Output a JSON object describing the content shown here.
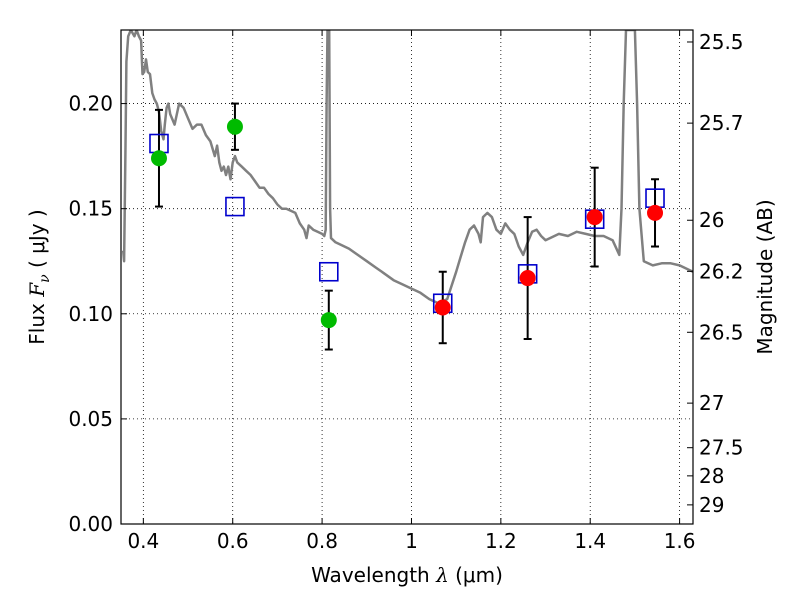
{
  "chart_data": {
    "type": "scatter",
    "xlabel": {
      "prefix": "Wavelength  ",
      "symbol": "λ",
      "units": " (μm)"
    },
    "ylabel": {
      "prefix": "Flux  ",
      "symbol": "F",
      "subscript": "ν",
      "units": "  ( μJy )"
    },
    "y2label": "Magnitude (AB)",
    "xlim": [
      0.35,
      1.63
    ],
    "ylim": [
      0.0,
      0.235
    ],
    "xticks": [
      0.4,
      0.6,
      0.8,
      1.0,
      1.2,
      1.4,
      1.6
    ],
    "xticklabels": [
      "0.4",
      "0.6",
      "0.8",
      "1",
      "1.2",
      "1.4",
      "1.6"
    ],
    "yticks": [
      0.0,
      0.05,
      0.1,
      0.15,
      0.2
    ],
    "yticklabels": [
      "0.00",
      "0.05",
      "0.10",
      "0.15",
      "0.20"
    ],
    "y2ticks": [
      {
        "label": "25.5",
        "flux": 0.2293
      },
      {
        "label": "25.7",
        "flux": 0.1907
      },
      {
        "label": "26",
        "flux": 0.1445
      },
      {
        "label": "26.2",
        "flux": 0.1202
      },
      {
        "label": "26.5",
        "flux": 0.0912
      },
      {
        "label": "27",
        "flux": 0.0575
      },
      {
        "label": "27.5",
        "flux": 0.0363
      },
      {
        "label": "28",
        "flux": 0.0229
      },
      {
        "label": "29",
        "flux": 0.0091
      }
    ],
    "grid": true,
    "series": [
      {
        "style": "line",
        "color": "#808080",
        "points": [
          [
            0.355,
            0.13
          ],
          [
            0.357,
            0.125
          ],
          [
            0.36,
            0.18
          ],
          [
            0.362,
            0.22
          ],
          [
            0.366,
            0.232
          ],
          [
            0.372,
            0.235
          ],
          [
            0.38,
            0.232
          ],
          [
            0.385,
            0.235
          ],
          [
            0.39,
            0.232
          ],
          [
            0.395,
            0.23
          ],
          [
            0.398,
            0.214
          ],
          [
            0.402,
            0.215
          ],
          [
            0.406,
            0.221
          ],
          [
            0.41,
            0.215
          ],
          [
            0.415,
            0.214
          ],
          [
            0.42,
            0.205
          ],
          [
            0.425,
            0.202
          ],
          [
            0.43,
            0.2
          ],
          [
            0.435,
            0.196
          ],
          [
            0.44,
            0.187
          ],
          [
            0.445,
            0.183
          ],
          [
            0.448,
            0.19
          ],
          [
            0.452,
            0.198
          ],
          [
            0.456,
            0.2
          ],
          [
            0.46,
            0.195
          ],
          [
            0.47,
            0.19
          ],
          [
            0.48,
            0.2
          ],
          [
            0.49,
            0.198
          ],
          [
            0.5,
            0.193
          ],
          [
            0.51,
            0.188
          ],
          [
            0.52,
            0.19
          ],
          [
            0.53,
            0.19
          ],
          [
            0.54,
            0.185
          ],
          [
            0.55,
            0.182
          ],
          [
            0.56,
            0.175
          ],
          [
            0.565,
            0.18
          ],
          [
            0.57,
            0.172
          ],
          [
            0.575,
            0.168
          ],
          [
            0.58,
            0.17
          ],
          [
            0.585,
            0.166
          ],
          [
            0.59,
            0.17
          ],
          [
            0.595,
            0.164
          ],
          [
            0.6,
            0.172
          ],
          [
            0.605,
            0.175
          ],
          [
            0.61,
            0.172
          ],
          [
            0.62,
            0.17
          ],
          [
            0.63,
            0.168
          ],
          [
            0.64,
            0.166
          ],
          [
            0.65,
            0.163
          ],
          [
            0.66,
            0.16
          ],
          [
            0.67,
            0.16
          ],
          [
            0.68,
            0.157
          ],
          [
            0.69,
            0.155
          ],
          [
            0.7,
            0.152
          ],
          [
            0.71,
            0.15
          ],
          [
            0.72,
            0.15
          ],
          [
            0.73,
            0.149
          ],
          [
            0.74,
            0.148
          ],
          [
            0.75,
            0.143
          ],
          [
            0.76,
            0.14
          ],
          [
            0.765,
            0.136
          ],
          [
            0.77,
            0.142
          ],
          [
            0.78,
            0.14
          ],
          [
            0.79,
            0.139
          ],
          [
            0.8,
            0.138
          ],
          [
            0.805,
            0.137
          ],
          [
            0.808,
            0.14
          ],
          [
            0.81,
            0.2
          ],
          [
            0.812,
            0.235
          ],
          [
            0.816,
            0.235
          ],
          [
            0.818,
            0.15
          ],
          [
            0.82,
            0.136
          ],
          [
            0.83,
            0.134
          ],
          [
            0.84,
            0.133
          ],
          [
            0.86,
            0.131
          ],
          [
            0.88,
            0.128
          ],
          [
            0.9,
            0.125
          ],
          [
            0.92,
            0.122
          ],
          [
            0.94,
            0.119
          ],
          [
            0.96,
            0.116
          ],
          [
            0.98,
            0.114
          ],
          [
            1.0,
            0.112
          ],
          [
            1.02,
            0.11
          ],
          [
            1.04,
            0.107
          ],
          [
            1.06,
            0.105
          ],
          [
            1.08,
            0.107
          ],
          [
            1.1,
            0.12
          ],
          [
            1.11,
            0.127
          ],
          [
            1.12,
            0.134
          ],
          [
            1.13,
            0.14
          ],
          [
            1.14,
            0.142
          ],
          [
            1.15,
            0.138
          ],
          [
            1.155,
            0.134
          ],
          [
            1.16,
            0.146
          ],
          [
            1.17,
            0.148
          ],
          [
            1.18,
            0.146
          ],
          [
            1.19,
            0.14
          ],
          [
            1.2,
            0.138
          ],
          [
            1.21,
            0.143
          ],
          [
            1.22,
            0.14
          ],
          [
            1.23,
            0.138
          ],
          [
            1.24,
            0.132
          ],
          [
            1.25,
            0.128
          ],
          [
            1.26,
            0.134
          ],
          [
            1.27,
            0.139
          ],
          [
            1.28,
            0.14
          ],
          [
            1.29,
            0.137
          ],
          [
            1.3,
            0.135
          ],
          [
            1.31,
            0.136
          ],
          [
            1.33,
            0.138
          ],
          [
            1.35,
            0.137
          ],
          [
            1.37,
            0.139
          ],
          [
            1.39,
            0.138
          ],
          [
            1.41,
            0.137
          ],
          [
            1.43,
            0.137
          ],
          [
            1.45,
            0.135
          ],
          [
            1.465,
            0.128
          ],
          [
            1.47,
            0.15
          ],
          [
            1.475,
            0.2
          ],
          [
            1.48,
            0.235
          ],
          [
            1.5,
            0.235
          ],
          [
            1.505,
            0.2
          ],
          [
            1.51,
            0.15
          ],
          [
            1.52,
            0.125
          ],
          [
            1.54,
            0.123
          ],
          [
            1.56,
            0.124
          ],
          [
            1.58,
            0.124
          ],
          [
            1.6,
            0.123
          ],
          [
            1.62,
            0.121
          ],
          [
            1.63,
            0.12
          ]
        ]
      },
      {
        "style": "markers",
        "marker": "circle",
        "color": "#00bb00",
        "points": [
          {
            "x": 0.435,
            "y": 0.174,
            "err": 0.023
          },
          {
            "x": 0.605,
            "y": 0.189,
            "err": 0.011
          },
          {
            "x": 0.815,
            "y": 0.097,
            "err": 0.014
          }
        ]
      },
      {
        "style": "markers",
        "marker": "circle",
        "color": "#ff0000",
        "points": [
          {
            "x": 1.07,
            "y": 0.103,
            "err": 0.017
          },
          {
            "x": 1.26,
            "y": 0.117,
            "err": 0.029
          },
          {
            "x": 1.41,
            "y": 0.146,
            "err": 0.0235
          },
          {
            "x": 1.545,
            "y": 0.148,
            "err": 0.016
          }
        ]
      },
      {
        "style": "markers",
        "marker": "open-square",
        "color": "#0000cc",
        "points": [
          {
            "x": 0.435,
            "y": 0.181
          },
          {
            "x": 0.605,
            "y": 0.151
          },
          {
            "x": 0.815,
            "y": 0.12
          },
          {
            "x": 1.07,
            "y": 0.105
          },
          {
            "x": 1.26,
            "y": 0.119
          },
          {
            "x": 1.41,
            "y": 0.145
          },
          {
            "x": 1.545,
            "y": 0.155
          }
        ]
      }
    ]
  }
}
